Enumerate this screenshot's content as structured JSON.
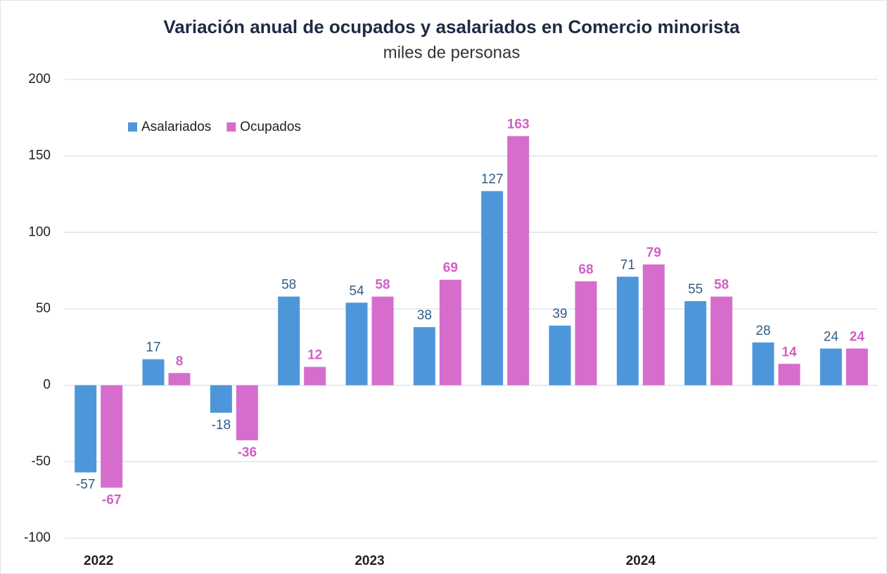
{
  "chart_data": {
    "type": "bar",
    "title": "Variación anual  de ocupados y asalariados en Comercio minorista",
    "subtitle": "miles de personas",
    "categories": [
      "2022",
      null,
      null,
      null,
      "2023",
      null,
      null,
      null,
      "2024",
      null,
      null,
      null
    ],
    "series": [
      {
        "name": "Asalariados",
        "color": "#4e96da",
        "values": [
          -57,
          17,
          -18,
          58,
          54,
          38,
          127,
          39,
          71,
          55,
          28,
          24
        ]
      },
      {
        "name": "Ocupados",
        "color": "#d66dcc",
        "values": [
          -67,
          8,
          -36,
          12,
          58,
          69,
          163,
          68,
          79,
          58,
          14,
          24
        ]
      }
    ],
    "ylim": [
      -100,
      200
    ],
    "yticks": [
      -100,
      -50,
      0,
      50,
      100,
      150,
      200
    ],
    "grid": true,
    "legend": "upper left"
  }
}
